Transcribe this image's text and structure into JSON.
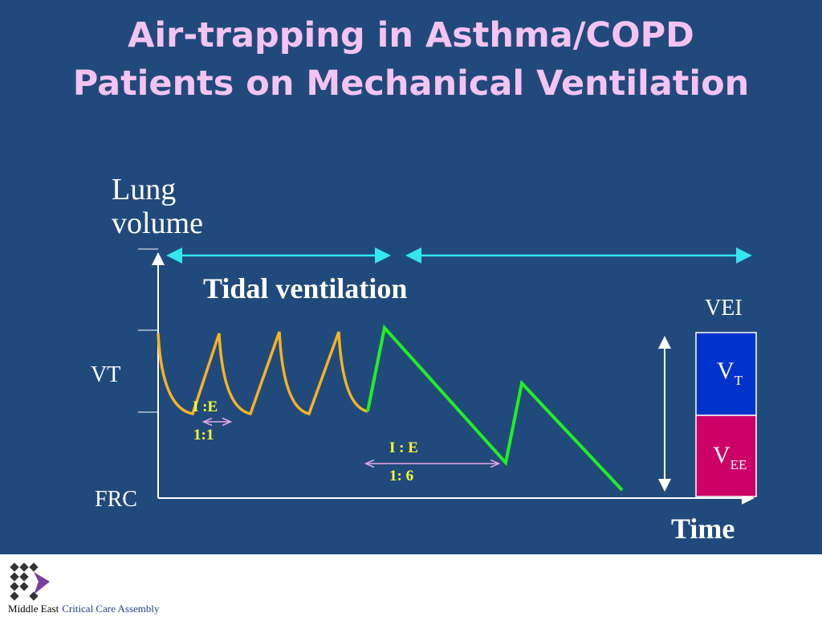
{
  "title": {
    "lines": [
      "Air-trapping in Asthma/COPD",
      "Patients on Mechanical Ventilation"
    ]
  },
  "diagram": {
    "y_axis_label": {
      "lines": [
        "Lung",
        "volume"
      ]
    },
    "x_axis_label": "Time",
    "section_label": "Tidal ventilation",
    "level_labels": {
      "vt": "VT",
      "frc": "FRC"
    },
    "normal_ratio": {
      "label": "I :E",
      "value": "1:1"
    },
    "obstructed_ratio": {
      "label": "I : E",
      "value": "1: 6"
    },
    "vei": {
      "label": "VEI",
      "upper": {
        "main": "V",
        "sub": "T"
      },
      "lower": {
        "main": "V",
        "sub": "EE"
      }
    }
  },
  "footer": {
    "org_prefix": "Middle East",
    "org_name": "Critical Care Assembly"
  }
}
